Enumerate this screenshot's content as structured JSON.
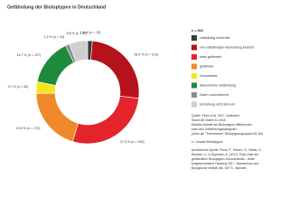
{
  "chart_data": {
    "type": "pie",
    "title": "Gefährdung der Biotoptypen in Deutschland",
    "total_label": "n = 863",
    "categories": [
      "vollständig vernichtet",
      "von vollständiger Vernichtung bedroht",
      "stark gefährdet",
      "gefährdet",
      "Vorwarnliste",
      "aktuell keine Gefährdung",
      "Daten unzureichend",
      "Einstufung nicht sinnvoll"
    ],
    "values": [
      1.5,
      25.4,
      27.8,
      19.9,
      3.7,
      14.7,
      1.2,
      5.8
    ],
    "value_labels": [
      "1,5 % (n = 13)",
      "25,4 % (n = 219)",
      "27,8 % (n = 240)",
      "19,9 % (n = 172)",
      "3,7 % (n = 32)",
      "14,7 % (n = 127)",
      "1,2 % (n = 10)",
      "5,8 % (n = 50)"
    ],
    "colors": [
      "#3a3a3a",
      "#b5121b",
      "#e3242b",
      "#f0892a",
      "#f6e51e",
      "#1e8a3c",
      "#8c8c8c",
      "#cfcfcf"
    ],
    "notes": [
      "Quelle: Finck et al. 2017, verändert",
      "Stand der Daten 12.2016",
      "Relative Anteile der Biotoptypen differenziert",
      "nach den Gefährdungskategorien",
      "(ohne die \"Technischen\" Biotoptypengruppen 52–54).",
      "n = Anzahl Biotoptypen",
      "Ausführliche Quelle: Finck, P., Heinze, S., Raths, U.,",
      "Riecken, U. & Ssymank, A. (2017): Rote Liste der",
      "gefährdeten Biotoptypen Deutschlands – dritte",
      "fortgeschriebene Fassung 2017. Naturschutz und",
      "Biologische Vielfalt 156, 637 S., Münster."
    ]
  }
}
